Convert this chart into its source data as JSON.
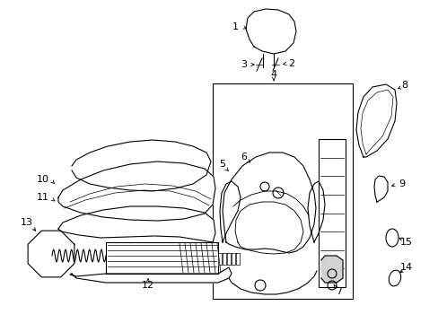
{
  "bg_color": "#ffffff",
  "line_color": "#000000",
  "font_size": 8,
  "figsize": [
    4.89,
    3.6
  ],
  "dpi": 100
}
